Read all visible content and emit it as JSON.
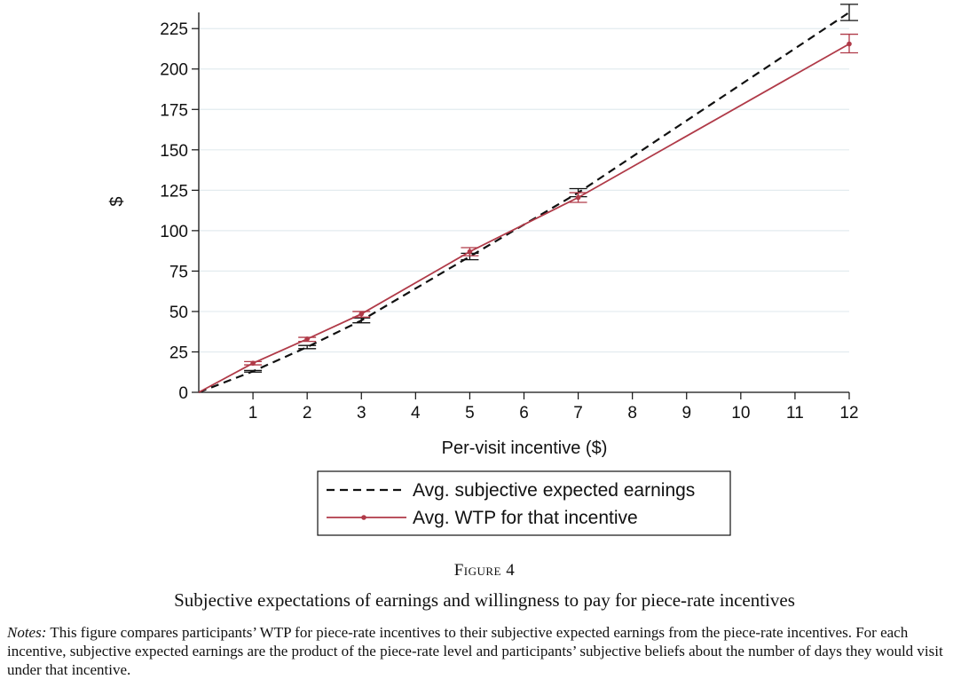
{
  "chart_data": {
    "type": "line",
    "title": "",
    "xlabel": "Per-visit incentive ($)",
    "ylabel": "$",
    "xlim": [
      0,
      12
    ],
    "ylim": [
      0,
      235
    ],
    "xticks": [
      1,
      2,
      3,
      4,
      5,
      6,
      7,
      8,
      9,
      10,
      11,
      12
    ],
    "yticks": [
      0,
      25,
      50,
      75,
      100,
      125,
      150,
      175,
      200,
      225
    ],
    "grid": "horizontal",
    "legend_position": "bottom-center",
    "series": [
      {
        "name": "Avg. subjective expected earnings",
        "style": "dashed",
        "color": "#111111",
        "marker": "none",
        "x": [
          0,
          1,
          2,
          3,
          5,
          7,
          12
        ],
        "y": [
          0,
          13,
          28,
          44.5,
          84,
          123.5,
          235
        ],
        "ci_low": [
          null,
          12.5,
          27,
          43,
          82,
          121,
          230
        ],
        "ci_high": [
          null,
          13.5,
          29,
          46,
          86,
          126,
          240
        ]
      },
      {
        "name": "Avg. WTP for that incentive",
        "style": "solid",
        "color": "#b03a48",
        "marker": "dot",
        "x": [
          0,
          1,
          2,
          3,
          5,
          7,
          12
        ],
        "y": [
          0,
          18,
          33,
          48.5,
          87,
          120.5,
          215.5
        ],
        "ci_low": [
          null,
          17,
          31.5,
          46.5,
          84.5,
          117.5,
          210
        ],
        "ci_high": [
          null,
          19,
          34,
          50,
          89.5,
          123.5,
          221.5
        ]
      }
    ]
  },
  "caption": {
    "figure_label": "Figure 4",
    "title": "Subjective expectations of earnings and willingness to pay for piece-rate incentives",
    "notes_lead": "Notes:",
    "notes_text": " This figure compares participants’ WTP for piece-rate incentives to their subjective expected earnings from the piece-rate incentives. For each incentive, subjective expected earnings are the product of the piece-rate level and participants’ subjective beliefs about the number of days they would visit under that incentive."
  }
}
